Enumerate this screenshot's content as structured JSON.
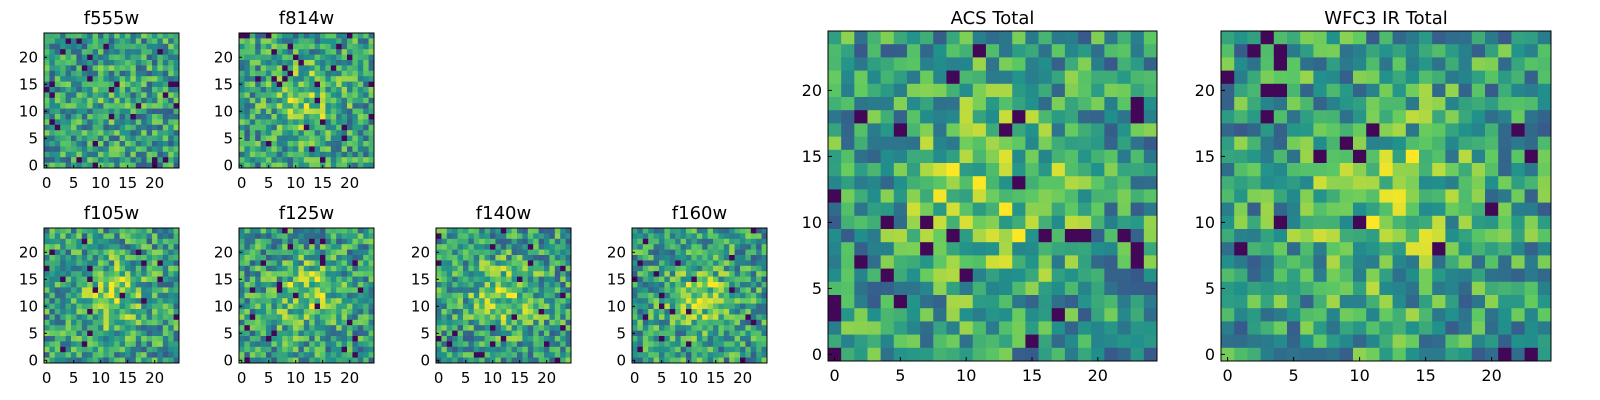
{
  "figure": {
    "colormap": "viridis",
    "colormap_stops": [
      "#440154",
      "#3b528b",
      "#21918c",
      "#5ec962",
      "#fde725"
    ]
  },
  "chart_data": [
    {
      "type": "heatmap",
      "title": "f555w",
      "grid_size": [
        25,
        25
      ],
      "xlim": [
        0,
        25
      ],
      "ylim": [
        0,
        25
      ],
      "xticks": [
        "0",
        "5",
        "10",
        "15",
        "20"
      ],
      "yticks": [
        "0",
        "5",
        "10",
        "15",
        "20"
      ],
      "xlabel": "",
      "ylabel": "",
      "grid": false
    },
    {
      "type": "heatmap",
      "title": "f814w",
      "grid_size": [
        25,
        25
      ],
      "xlim": [
        0,
        25
      ],
      "ylim": [
        0,
        25
      ],
      "xticks": [
        "0",
        "5",
        "10",
        "15",
        "20"
      ],
      "yticks": [
        "0",
        "5",
        "10",
        "15",
        "20"
      ],
      "xlabel": "",
      "ylabel": "",
      "grid": false
    },
    {
      "type": "heatmap",
      "title": "f105w",
      "grid_size": [
        25,
        25
      ],
      "xlim": [
        0,
        25
      ],
      "ylim": [
        0,
        25
      ],
      "xticks": [
        "0",
        "5",
        "10",
        "15",
        "20"
      ],
      "yticks": [
        "0",
        "5",
        "10",
        "15",
        "20"
      ],
      "xlabel": "",
      "ylabel": "",
      "grid": false
    },
    {
      "type": "heatmap",
      "title": "f125w",
      "grid_size": [
        25,
        25
      ],
      "xlim": [
        0,
        25
      ],
      "ylim": [
        0,
        25
      ],
      "xticks": [
        "0",
        "5",
        "10",
        "15",
        "20"
      ],
      "yticks": [
        "0",
        "5",
        "10",
        "15",
        "20"
      ],
      "xlabel": "",
      "ylabel": "",
      "grid": false
    },
    {
      "type": "heatmap",
      "title": "f140w",
      "grid_size": [
        25,
        25
      ],
      "xlim": [
        0,
        25
      ],
      "ylim": [
        0,
        25
      ],
      "xticks": [
        "0",
        "5",
        "10",
        "15",
        "20"
      ],
      "yticks": [
        "0",
        "5",
        "10",
        "15",
        "20"
      ],
      "xlabel": "",
      "ylabel": "",
      "grid": false
    },
    {
      "type": "heatmap",
      "title": "f160w",
      "grid_size": [
        25,
        25
      ],
      "xlim": [
        0,
        25
      ],
      "ylim": [
        0,
        25
      ],
      "xticks": [
        "0",
        "5",
        "10",
        "15",
        "20"
      ],
      "yticks": [
        "0",
        "5",
        "10",
        "15",
        "20"
      ],
      "xlabel": "",
      "ylabel": "",
      "grid": false
    },
    {
      "type": "heatmap",
      "title": "ACS Total",
      "grid_size": [
        25,
        25
      ],
      "xlim": [
        0,
        25
      ],
      "ylim": [
        0,
        25
      ],
      "xticks": [
        "0",
        "5",
        "10",
        "15",
        "20"
      ],
      "yticks": [
        "0",
        "5",
        "10",
        "15",
        "20"
      ],
      "xlabel": "",
      "ylabel": "",
      "grid": false
    },
    {
      "type": "heatmap",
      "title": "WFC3 IR Total",
      "grid_size": [
        25,
        25
      ],
      "xlim": [
        0,
        25
      ],
      "ylim": [
        0,
        25
      ],
      "xticks": [
        "0",
        "5",
        "10",
        "15",
        "20"
      ],
      "yticks": [
        "0",
        "5",
        "10",
        "15",
        "20"
      ],
      "xlabel": "",
      "ylabel": "",
      "grid": false
    }
  ]
}
